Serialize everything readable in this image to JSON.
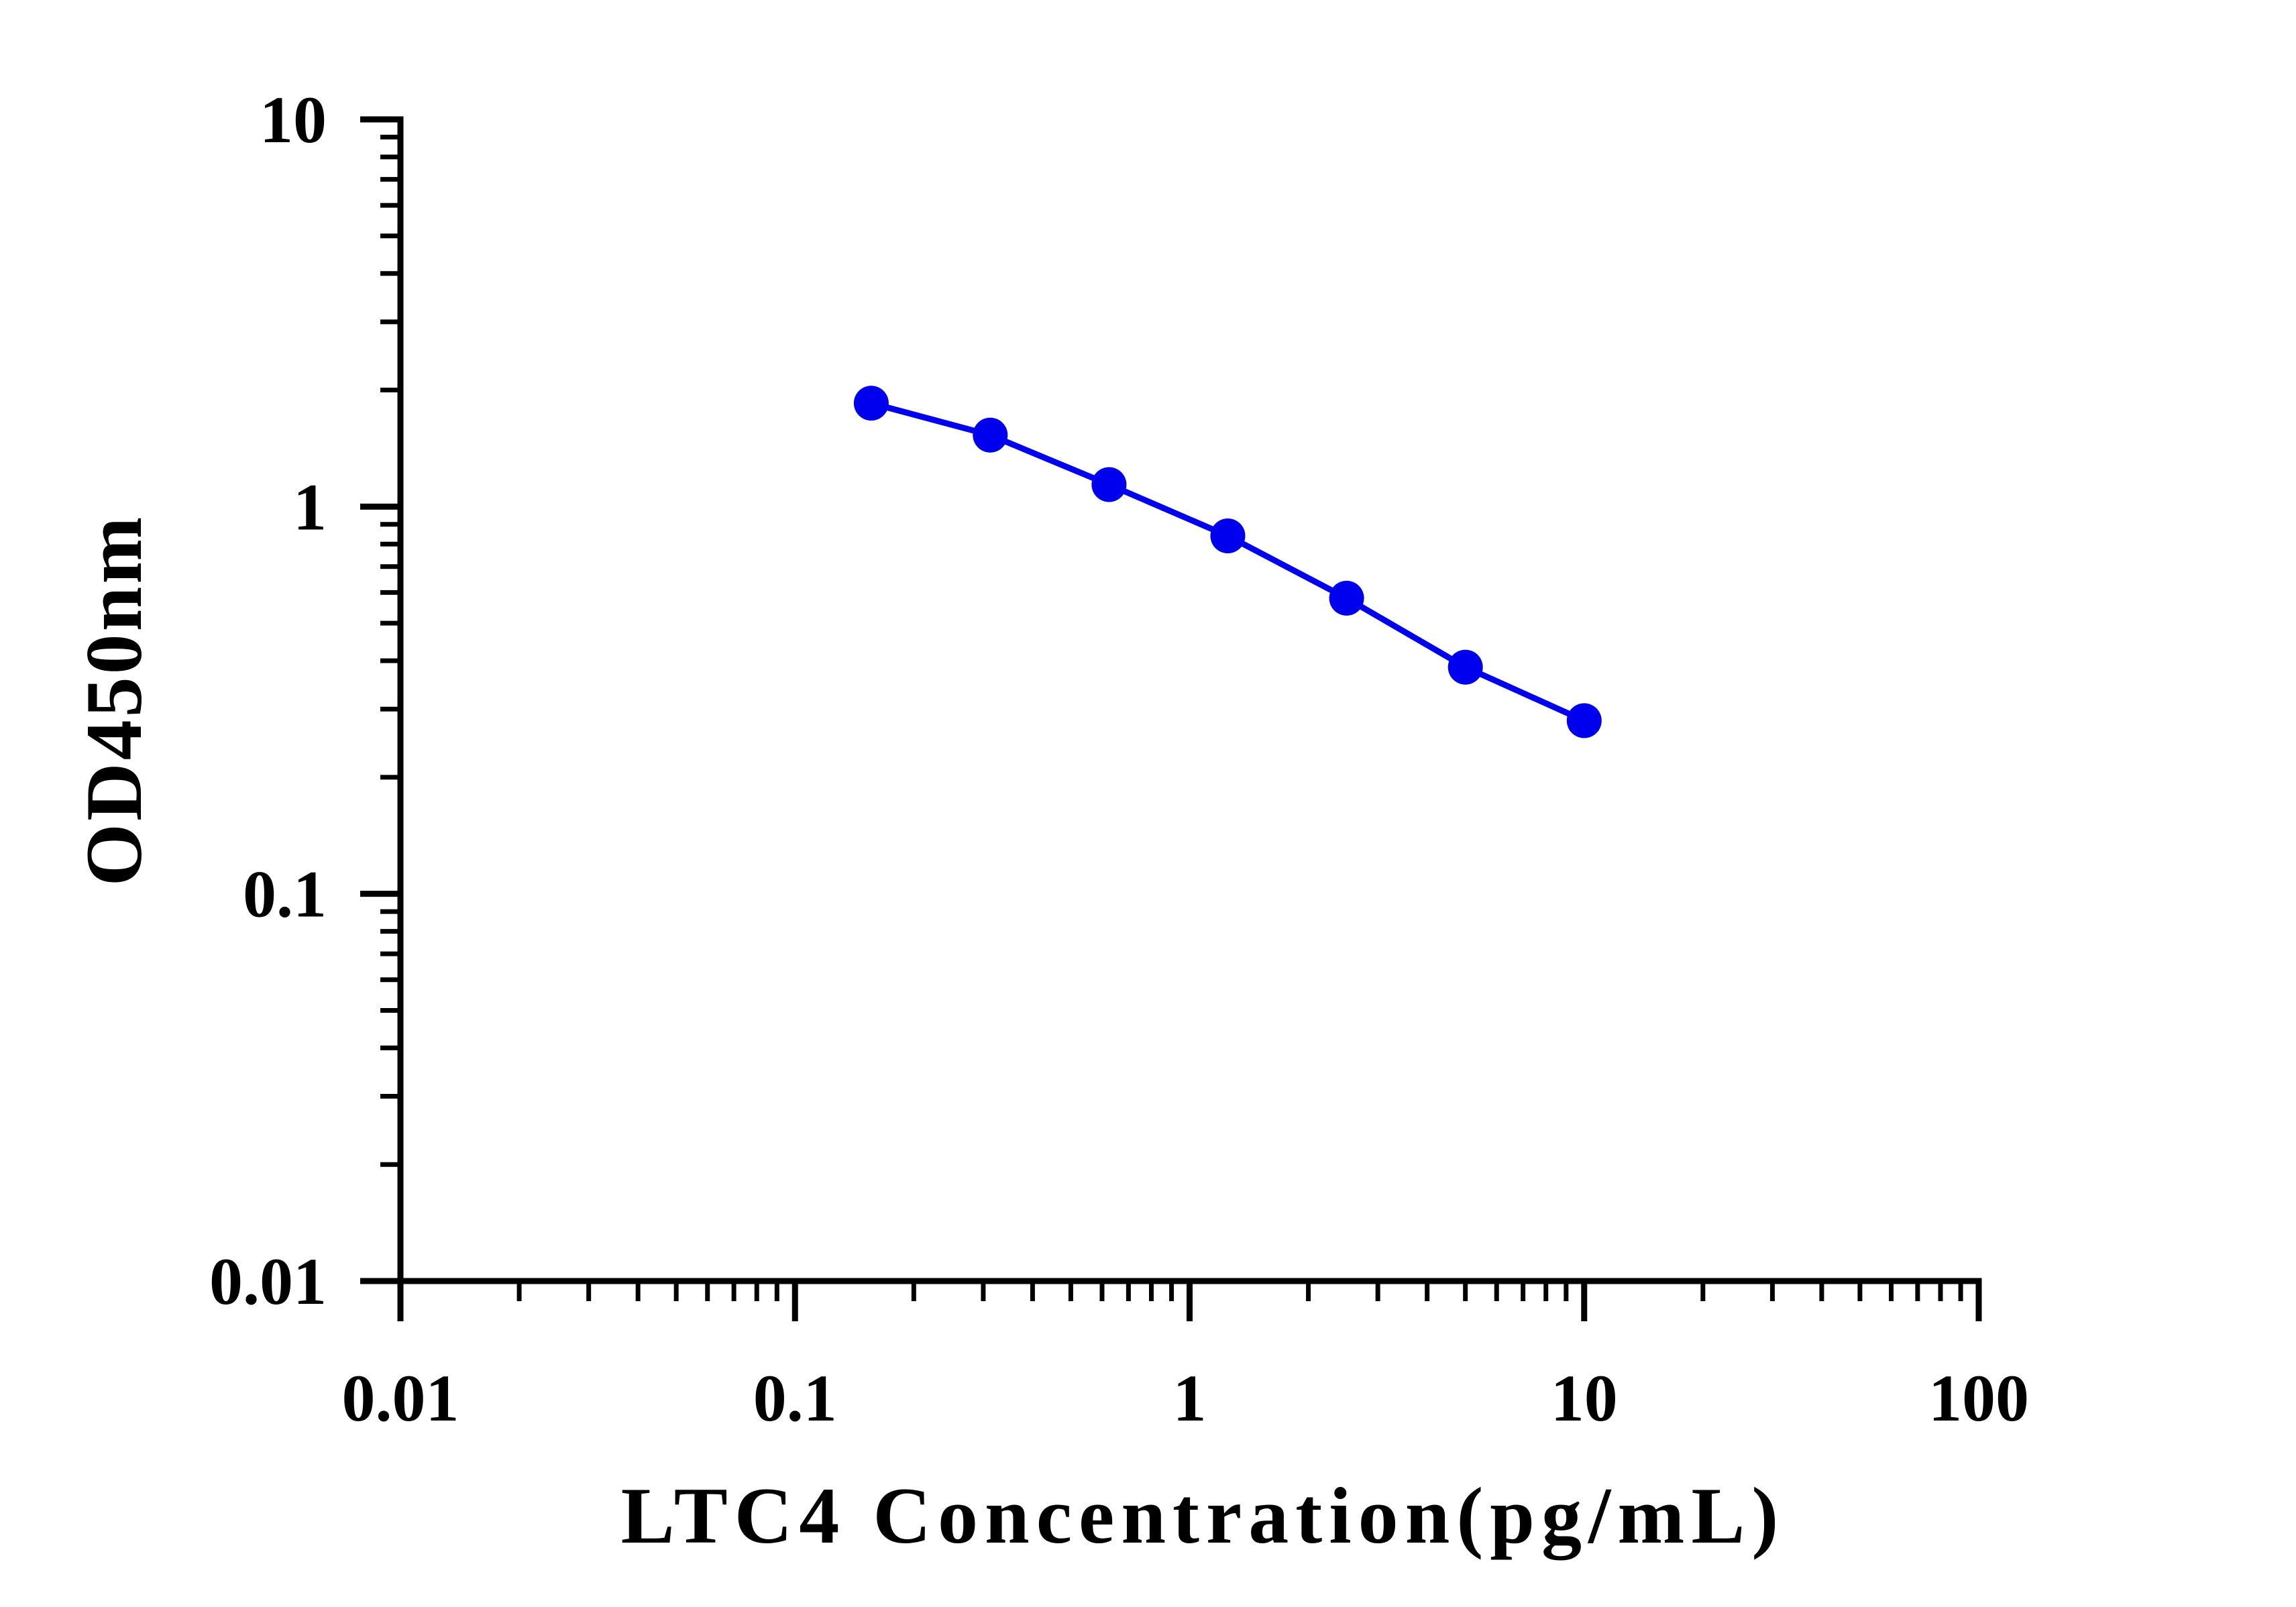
{
  "chart_data": {
    "type": "line",
    "title": "",
    "xlabel": "LTC4 Concentration(pg/mL)",
    "ylabel": "OD450nm",
    "xscale": "log",
    "yscale": "log",
    "xlim": [
      0.01,
      100
    ],
    "ylim": [
      0.01,
      10
    ],
    "x_ticks": [
      0.01,
      0.1,
      1,
      10,
      100
    ],
    "x_tick_labels": [
      "0.01",
      "0.1",
      "1",
      "10",
      "100"
    ],
    "y_ticks": [
      0.01,
      0.1,
      1,
      10
    ],
    "y_tick_labels": [
      "0.01",
      "0.1",
      "1",
      "10"
    ],
    "grid": false,
    "legend": "none",
    "series": [
      {
        "color": "#0000ee",
        "marker": "circle",
        "x": [
          0.156,
          0.3125,
          0.625,
          1.25,
          2.5,
          5,
          10
        ],
        "y": [
          1.85,
          1.53,
          1.14,
          0.84,
          0.58,
          0.385,
          0.28
        ]
      }
    ]
  }
}
